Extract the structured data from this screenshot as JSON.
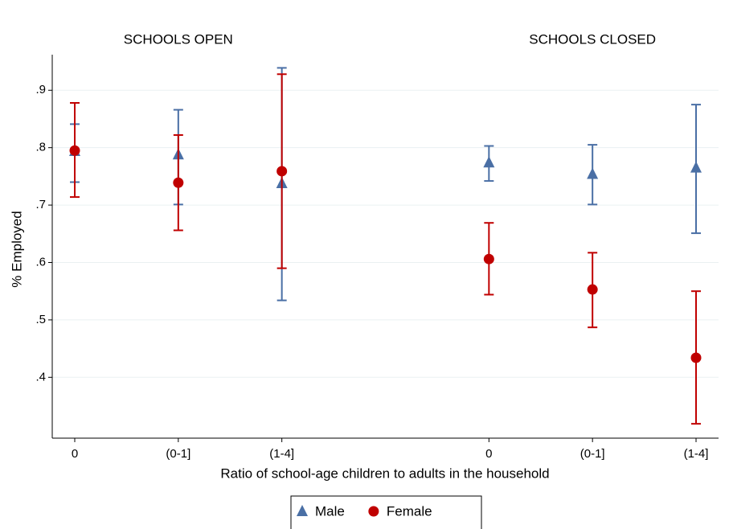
{
  "chart_data": {
    "type": "errorbar",
    "panel_labels": [
      "SCHOOLS OPEN",
      "SCHOOLS CLOSED"
    ],
    "x_label": "Ratio of school-age children to adults in the household",
    "y_label": "% Employed",
    "categories": [
      "0",
      "(0-1]",
      "(1-4]",
      null,
      "0",
      "(0-1]",
      "(1-4]"
    ],
    "ylim": [
      0.294,
      0.962
    ],
    "yticks": [
      {
        "value": 0.4,
        "label": ".4"
      },
      {
        "value": 0.5,
        "label": ".5"
      },
      {
        "value": 0.6,
        "label": ".6"
      },
      {
        "value": 0.7,
        "label": ".7"
      },
      {
        "value": 0.8,
        "label": ".8"
      },
      {
        "value": 0.9,
        "label": ".9"
      }
    ],
    "grid": true,
    "legend": "bottom",
    "series": [
      {
        "name": "Male",
        "color": "#4a6fa5",
        "marker": "triangle",
        "values": [
          0.794,
          0.788,
          0.738,
          null,
          0.774,
          0.754,
          0.765
        ],
        "lower": [
          0.74,
          0.701,
          0.534,
          null,
          0.742,
          0.701,
          0.651
        ],
        "upper": [
          0.841,
          0.866,
          0.939,
          null,
          0.803,
          0.805,
          0.875
        ]
      },
      {
        "name": "Female",
        "color": "#c00000",
        "marker": "circle",
        "values": [
          0.795,
          0.739,
          0.759,
          null,
          0.606,
          0.553,
          0.434
        ],
        "lower": [
          0.714,
          0.656,
          0.59,
          null,
          0.544,
          0.487,
          0.319
        ],
        "upper": [
          0.878,
          0.822,
          0.928,
          null,
          0.669,
          0.617,
          0.55
        ]
      }
    ]
  }
}
